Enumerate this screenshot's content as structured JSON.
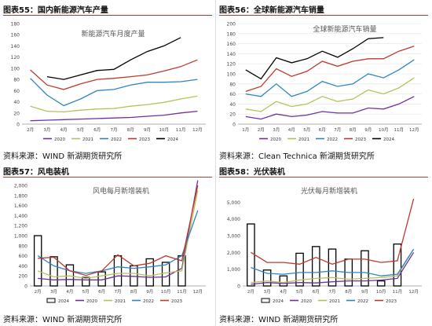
{
  "sources": {
    "src1": "资料来源：WIND 新湖期货研究所",
    "src2": "资料来源：Clean Technica 新湖期货研究所",
    "src3": "资料来源：WIND 新湖期货研究所",
    "src4": "资料来源：WIND 新湖期货研究所"
  },
  "chart_data": [
    {
      "type": "line",
      "label": "图表55：国内新能源汽车产量",
      "title": "新能源汽车月度产量",
      "categories": [
        "2月",
        "3月",
        "4月",
        "5月",
        "6月",
        "7月",
        "8月",
        "9月",
        "10月",
        "11月",
        "12月"
      ],
      "ylim": [
        0,
        180
      ],
      "yticks": [
        0,
        20,
        40,
        60,
        80,
        100,
        120,
        140,
        160,
        180
      ],
      "grid": false,
      "legend": "bottom",
      "series": [
        {
          "name": "2020",
          "color": "#7030a0",
          "values": [
            6,
            7,
            8,
            9,
            10,
            11,
            12,
            14,
            16,
            20,
            23
          ]
        },
        {
          "name": "2021",
          "color": "#b5c25a",
          "values": [
            32,
            23,
            22,
            25,
            27,
            28,
            32,
            35,
            39,
            45,
            50
          ]
        },
        {
          "name": "2022",
          "color": "#2e86c1",
          "values": [
            82,
            52,
            33,
            45,
            60,
            62,
            70,
            75,
            75,
            76,
            80
          ]
        },
        {
          "name": "2023",
          "color": "#c0392b",
          "values": [
            97,
            70,
            62,
            72,
            80,
            82,
            85,
            88,
            95,
            103,
            115
          ]
        },
        {
          "name": "2024",
          "color": "#000000",
          "values": [
            null,
            85,
            80,
            88,
            96,
            98,
            115,
            130,
            140,
            155,
            null
          ]
        }
      ]
    },
    {
      "type": "line",
      "label": "图表56：全球新能源汽车销量",
      "title": "全球新能源汽车销量",
      "categories": [
        "1月",
        "2月",
        "3月",
        "4月",
        "5月",
        "6月",
        "7月",
        "8月",
        "9月",
        "10月",
        "11月",
        "12月"
      ],
      "ylim": [
        0,
        200
      ],
      "yticks": [
        0,
        20,
        40,
        60,
        80,
        100,
        120,
        140,
        160,
        180,
        200
      ],
      "grid": true,
      "legend": "bottom",
      "series": [
        {
          "name": "2020",
          "color": "#7030a0",
          "values": [
            15,
            10,
            20,
            15,
            18,
            25,
            22,
            22,
            32,
            30,
            40,
            55
          ]
        },
        {
          "name": "2021",
          "color": "#b5c25a",
          "values": [
            30,
            25,
            45,
            35,
            40,
            55,
            45,
            50,
            68,
            60,
            72,
            92
          ]
        },
        {
          "name": "2022",
          "color": "#2e86c1",
          "values": [
            60,
            55,
            80,
            55,
            65,
            85,
            75,
            80,
            100,
            92,
            108,
            128
          ]
        },
        {
          "name": "2023",
          "color": "#c0392b",
          "values": [
            65,
            75,
            110,
            95,
            105,
            125,
            115,
            125,
            130,
            130,
            145,
            155
          ]
        },
        {
          "name": "2024",
          "color": "#000000",
          "values": [
            108,
            90,
            132,
            122,
            130,
            145,
            133,
            150,
            170,
            172,
            null,
            null
          ]
        }
      ]
    },
    {
      "type": "bar",
      "label": "图表57：风电装机",
      "title": "风电每月新增装机",
      "categories": [
        "2月",
        "3月",
        "4月",
        "5月",
        "6月",
        "7月",
        "8月",
        "9月",
        "10月",
        "11月",
        "12月"
      ],
      "ylim": [
        0,
        2000
      ],
      "yticks": [
        0,
        200,
        400,
        600,
        800,
        1000,
        1200,
        1400,
        1600,
        1800,
        2000
      ],
      "grid": false,
      "legend": "bottom",
      "bars": {
        "name": "2024",
        "values": [
          1000,
          580,
          420,
          170,
          280,
          600,
          400,
          540,
          470,
          600,
          null
        ]
      },
      "series": [
        {
          "name": "2020",
          "color": "#7030a0",
          "values": [
            150,
            120,
            130,
            120,
            120,
            200,
            190,
            170,
            180,
            350,
            2100
          ]
        },
        {
          "name": "2021",
          "color": "#b5c25a",
          "values": [
            300,
            180,
            200,
            150,
            200,
            250,
            250,
            200,
            260,
            300,
            1900
          ]
        },
        {
          "name": "2022",
          "color": "#2e86c1",
          "values": [
            600,
            400,
            300,
            250,
            300,
            380,
            350,
            380,
            420,
            600,
            1500
          ]
        },
        {
          "name": "2023",
          "color": "#c0392b",
          "values": [
            550,
            570,
            300,
            210,
            300,
            620,
            400,
            450,
            600,
            500,
            2000
          ]
        }
      ]
    },
    {
      "type": "bar",
      "label": "图表58：光伏装机",
      "title": "光伏每月新增装机",
      "categories": [
        "2月",
        "3月",
        "4月",
        "5月",
        "6月",
        "7月",
        "8月",
        "9月",
        "10月",
        "11月",
        "12月"
      ],
      "ylim": [
        0,
        6000
      ],
      "yticks": [
        0,
        1000,
        2000,
        3000,
        4000,
        5000
      ],
      "grid": false,
      "legend": "bottom",
      "bars": {
        "name": "2024",
        "values": [
          3700,
          950,
          600,
          1950,
          2350,
          2200,
          1600,
          2100,
          300,
          2500,
          null
        ]
      },
      "series": [
        {
          "name": "2020",
          "color": "#7030a0",
          "values": [
            100,
            200,
            150,
            200,
            180,
            250,
            300,
            300,
            350,
            450,
            2000
          ]
        },
        {
          "name": "2021",
          "color": "#b5c25a",
          "values": [
            200,
            300,
            200,
            350,
            450,
            500,
            400,
            450,
            500,
            600,
            2200
          ]
        },
        {
          "name": "2022",
          "color": "#2e86c1",
          "values": [
            1100,
            750,
            700,
            800,
            800,
            900,
            800,
            800,
            600,
            700,
            2200
          ]
        },
        {
          "name": "2023",
          "color": "#c0392b",
          "values": [
            2000,
            1400,
            1400,
            1300,
            1700,
            1300,
            1600,
            1600,
            1400,
            1500,
            5200
          ]
        }
      ]
    }
  ]
}
